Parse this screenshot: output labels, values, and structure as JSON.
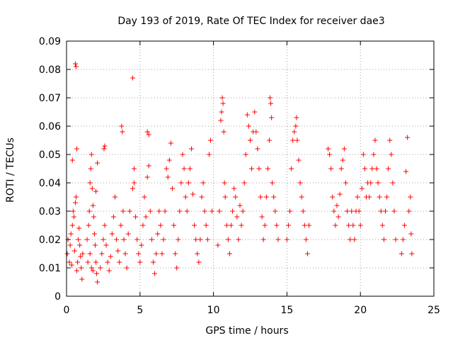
{
  "chart_data": {
    "type": "scatter",
    "title": "Day 193 of 2019, Rate Of TEC Index for receiver dae3",
    "xlabel": "GPS time / hours",
    "ylabel": "ROTI / TECUs",
    "xlim": [
      0,
      25
    ],
    "ylim": [
      0,
      0.09
    ],
    "x_ticks": [
      0,
      5,
      10,
      15,
      20,
      25
    ],
    "x_tick_labels": [
      "0",
      "5",
      "10",
      "15",
      "20",
      "25"
    ],
    "y_ticks": [
      0,
      0.01,
      0.02,
      0.03,
      0.04,
      0.05,
      0.06,
      0.07,
      0.08,
      0.09
    ],
    "y_tick_labels": [
      "0",
      "0.01",
      "0.02",
      "0.03",
      "0.04",
      "0.05",
      "0.06",
      "0.07",
      "0.08",
      "0.09"
    ],
    "grid": true,
    "marker": "+",
    "marker_color": "#ff0000",
    "series": [
      {
        "name": "ROTI",
        "points": [
          [
            0.05,
            0.015
          ],
          [
            0.1,
            0.02
          ],
          [
            0.2,
            0.012
          ],
          [
            0.25,
            0.018
          ],
          [
            0.3,
            0.022
          ],
          [
            0.35,
            0.011
          ],
          [
            0.4,
            0.025
          ],
          [
            0.45,
            0.03
          ],
          [
            0.5,
            0.028
          ],
          [
            0.55,
            0.016
          ],
          [
            0.6,
            0.033
          ],
          [
            0.65,
            0.035
          ],
          [
            0.7,
            0.009
          ],
          [
            0.75,
            0.012
          ],
          [
            0.8,
            0.02
          ],
          [
            0.85,
            0.024
          ],
          [
            0.9,
            0.018
          ],
          [
            0.95,
            0.014
          ],
          [
            1.0,
            0.01
          ],
          [
            1.05,
            0.006
          ],
          [
            1.1,
            0.015
          ],
          [
            0.6,
            0.082
          ],
          [
            0.65,
            0.081
          ],
          [
            0.4,
            0.048
          ],
          [
            0.7,
            0.052
          ],
          [
            1.4,
            0.02
          ],
          [
            1.5,
            0.025
          ],
          [
            1.55,
            0.03
          ],
          [
            1.6,
            0.04
          ],
          [
            1.65,
            0.045
          ],
          [
            1.7,
            0.05
          ],
          [
            1.75,
            0.038
          ],
          [
            1.8,
            0.032
          ],
          [
            1.85,
            0.028
          ],
          [
            1.9,
            0.022
          ],
          [
            1.95,
            0.018
          ],
          [
            2.0,
            0.012
          ],
          [
            2.05,
            0.008
          ],
          [
            2.1,
            0.005
          ],
          [
            1.45,
            0.012
          ],
          [
            1.6,
            0.015
          ],
          [
            1.7,
            0.01
          ],
          [
            1.8,
            0.009
          ],
          [
            2.1,
            0.047
          ],
          [
            2.0,
            0.037
          ],
          [
            2.3,
            0.01
          ],
          [
            2.4,
            0.015
          ],
          [
            2.5,
            0.02
          ],
          [
            2.6,
            0.025
          ],
          [
            2.55,
            0.052
          ],
          [
            2.6,
            0.053
          ],
          [
            2.7,
            0.018
          ],
          [
            2.8,
            0.012
          ],
          [
            2.9,
            0.009
          ],
          [
            3.0,
            0.014
          ],
          [
            3.1,
            0.022
          ],
          [
            3.2,
            0.028
          ],
          [
            3.3,
            0.035
          ],
          [
            3.4,
            0.02
          ],
          [
            3.5,
            0.016
          ],
          [
            3.6,
            0.012
          ],
          [
            3.7,
            0.025
          ],
          [
            3.75,
            0.06
          ],
          [
            3.8,
            0.058
          ],
          [
            3.85,
            0.03
          ],
          [
            3.9,
            0.02
          ],
          [
            4.0,
            0.015
          ],
          [
            4.1,
            0.01
          ],
          [
            4.2,
            0.022
          ],
          [
            4.3,
            0.03
          ],
          [
            4.5,
            0.077
          ],
          [
            4.6,
            0.045
          ],
          [
            4.5,
            0.038
          ],
          [
            4.6,
            0.04
          ],
          [
            4.7,
            0.028
          ],
          [
            4.8,
            0.02
          ],
          [
            4.9,
            0.015
          ],
          [
            5.0,
            0.012
          ],
          [
            5.1,
            0.018
          ],
          [
            5.2,
            0.025
          ],
          [
            5.3,
            0.035
          ],
          [
            5.4,
            0.028
          ],
          [
            5.5,
            0.058
          ],
          [
            5.6,
            0.057
          ],
          [
            5.5,
            0.042
          ],
          [
            5.6,
            0.046
          ],
          [
            5.7,
            0.03
          ],
          [
            5.8,
            0.02
          ],
          [
            5.9,
            0.012
          ],
          [
            6.0,
            0.008
          ],
          [
            6.1,
            0.015
          ],
          [
            6.2,
            0.022
          ],
          [
            6.3,
            0.03
          ],
          [
            6.4,
            0.025
          ],
          [
            6.5,
            0.015
          ],
          [
            6.6,
            0.02
          ],
          [
            6.7,
            0.03
          ],
          [
            6.8,
            0.045
          ],
          [
            6.9,
            0.042
          ],
          [
            7.0,
            0.048
          ],
          [
            7.1,
            0.054
          ],
          [
            7.2,
            0.038
          ],
          [
            7.3,
            0.025
          ],
          [
            7.4,
            0.015
          ],
          [
            7.5,
            0.01
          ],
          [
            7.6,
            0.02
          ],
          [
            7.7,
            0.03
          ],
          [
            7.8,
            0.04
          ],
          [
            7.9,
            0.05
          ],
          [
            8.0,
            0.045
          ],
          [
            8.1,
            0.035
          ],
          [
            8.2,
            0.03
          ],
          [
            8.3,
            0.04
          ],
          [
            8.4,
            0.045
          ],
          [
            8.5,
            0.052
          ],
          [
            8.6,
            0.036
          ],
          [
            8.7,
            0.025
          ],
          [
            8.8,
            0.02
          ],
          [
            8.9,
            0.015
          ],
          [
            9.0,
            0.012
          ],
          [
            9.1,
            0.02
          ],
          [
            9.2,
            0.035
          ],
          [
            9.3,
            0.04
          ],
          [
            9.4,
            0.03
          ],
          [
            9.5,
            0.025
          ],
          [
            9.6,
            0.02
          ],
          [
            9.7,
            0.05
          ],
          [
            9.8,
            0.055
          ],
          [
            9.9,
            0.03
          ],
          [
            10.3,
            0.018
          ],
          [
            10.4,
            0.03
          ],
          [
            10.5,
            0.062
          ],
          [
            10.55,
            0.065
          ],
          [
            10.6,
            0.07
          ],
          [
            10.65,
            0.068
          ],
          [
            10.7,
            0.058
          ],
          [
            10.75,
            0.04
          ],
          [
            10.8,
            0.035
          ],
          [
            10.9,
            0.025
          ],
          [
            11.0,
            0.02
          ],
          [
            11.1,
            0.015
          ],
          [
            11.2,
            0.025
          ],
          [
            11.3,
            0.03
          ],
          [
            11.4,
            0.038
          ],
          [
            11.5,
            0.035
          ],
          [
            11.6,
            0.028
          ],
          [
            11.7,
            0.02
          ],
          [
            11.8,
            0.032
          ],
          [
            11.9,
            0.025
          ],
          [
            12.0,
            0.03
          ],
          [
            12.1,
            0.04
          ],
          [
            12.2,
            0.05
          ],
          [
            12.3,
            0.064
          ],
          [
            12.4,
            0.06
          ],
          [
            12.5,
            0.055
          ],
          [
            12.6,
            0.045
          ],
          [
            12.7,
            0.058
          ],
          [
            12.8,
            0.065
          ],
          [
            12.9,
            0.058
          ],
          [
            13.0,
            0.052
          ],
          [
            13.1,
            0.045
          ],
          [
            13.2,
            0.035
          ],
          [
            13.3,
            0.028
          ],
          [
            13.4,
            0.02
          ],
          [
            13.5,
            0.025
          ],
          [
            13.6,
            0.035
          ],
          [
            13.7,
            0.045
          ],
          [
            13.8,
            0.055
          ],
          [
            13.85,
            0.07
          ],
          [
            13.9,
            0.068
          ],
          [
            13.95,
            0.063
          ],
          [
            14.0,
            0.04
          ],
          [
            14.1,
            0.035
          ],
          [
            14.2,
            0.03
          ],
          [
            14.3,
            0.025
          ],
          [
            14.4,
            0.02
          ],
          [
            15.0,
            0.02
          ],
          [
            15.1,
            0.025
          ],
          [
            15.2,
            0.03
          ],
          [
            15.3,
            0.045
          ],
          [
            15.4,
            0.055
          ],
          [
            15.5,
            0.058
          ],
          [
            15.6,
            0.06
          ],
          [
            15.65,
            0.063
          ],
          [
            15.7,
            0.055
          ],
          [
            15.8,
            0.048
          ],
          [
            15.9,
            0.04
          ],
          [
            16.0,
            0.035
          ],
          [
            16.1,
            0.03
          ],
          [
            16.2,
            0.025
          ],
          [
            16.3,
            0.02
          ],
          [
            16.4,
            0.015
          ],
          [
            16.5,
            0.025
          ],
          [
            17.8,
            0.052
          ],
          [
            17.9,
            0.05
          ],
          [
            18.0,
            0.045
          ],
          [
            18.1,
            0.035
          ],
          [
            18.2,
            0.03
          ],
          [
            18.3,
            0.025
          ],
          [
            18.4,
            0.032
          ],
          [
            18.5,
            0.028
          ],
          [
            18.6,
            0.036
          ],
          [
            18.7,
            0.045
          ],
          [
            18.8,
            0.048
          ],
          [
            18.9,
            0.052
          ],
          [
            19.0,
            0.04
          ],
          [
            19.1,
            0.03
          ],
          [
            19.2,
            0.025
          ],
          [
            19.3,
            0.02
          ],
          [
            19.4,
            0.03
          ],
          [
            19.5,
            0.025
          ],
          [
            19.6,
            0.02
          ],
          [
            19.7,
            0.03
          ],
          [
            19.8,
            0.035
          ],
          [
            19.9,
            0.03
          ],
          [
            20.0,
            0.025
          ],
          [
            20.1,
            0.038
          ],
          [
            20.2,
            0.05
          ],
          [
            20.3,
            0.045
          ],
          [
            20.4,
            0.035
          ],
          [
            20.5,
            0.04
          ],
          [
            20.6,
            0.035
          ],
          [
            20.7,
            0.04
          ],
          [
            20.8,
            0.045
          ],
          [
            20.9,
            0.05
          ],
          [
            21.0,
            0.055
          ],
          [
            21.1,
            0.045
          ],
          [
            21.2,
            0.04
          ],
          [
            21.3,
            0.035
          ],
          [
            21.4,
            0.03
          ],
          [
            21.5,
            0.025
          ],
          [
            21.6,
            0.02
          ],
          [
            21.7,
            0.03
          ],
          [
            21.8,
            0.035
          ],
          [
            21.9,
            0.045
          ],
          [
            22.0,
            0.055
          ],
          [
            22.1,
            0.05
          ],
          [
            22.2,
            0.04
          ],
          [
            22.3,
            0.03
          ],
          [
            22.4,
            0.02
          ],
          [
            22.8,
            0.015
          ],
          [
            22.9,
            0.02
          ],
          [
            23.0,
            0.025
          ],
          [
            23.1,
            0.044
          ],
          [
            23.2,
            0.056
          ],
          [
            23.3,
            0.03
          ],
          [
            23.4,
            0.035
          ],
          [
            23.45,
            0.022
          ],
          [
            23.5,
            0.015
          ]
        ]
      }
    ]
  }
}
